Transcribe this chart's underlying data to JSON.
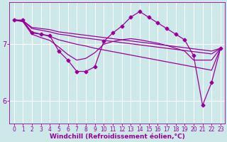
{
  "background_color": "#cce8e8",
  "line_color": "#990099",
  "grid_color": "#ffffff",
  "xlabel": "Windchill (Refroidissement éolien,°C)",
  "ylabel_ticks": [
    6,
    7
  ],
  "xlim": [
    -0.5,
    23.5
  ],
  "ylim": [
    5.6,
    7.75
  ],
  "x_ticks": [
    0,
    1,
    2,
    3,
    4,
    5,
    6,
    7,
    8,
    9,
    10,
    11,
    12,
    13,
    14,
    15,
    16,
    17,
    18,
    19,
    20,
    21,
    22,
    23
  ],
  "series": [
    {
      "x": [
        0,
        1,
        2,
        3,
        4,
        5,
        6,
        7,
        8,
        9,
        10,
        11,
        12,
        13,
        14,
        15,
        16,
        17,
        18,
        19,
        20,
        21,
        22,
        23
      ],
      "y": [
        7.43,
        7.43,
        7.2,
        7.18,
        7.15,
        6.88,
        6.72,
        6.52,
        6.52,
        6.6,
        7.05,
        7.2,
        7.32,
        7.48,
        7.58,
        7.48,
        7.38,
        7.28,
        7.18,
        7.08,
        6.8,
        5.92,
        6.32,
        6.93
      ],
      "has_markers": true
    },
    {
      "x": [
        0,
        1,
        2,
        3,
        4,
        5,
        6,
        7,
        8,
        9,
        10,
        11,
        12,
        13,
        14,
        15,
        16,
        17,
        18,
        19,
        20,
        21,
        22,
        23
      ],
      "y": [
        7.43,
        7.42,
        7.3,
        7.28,
        7.26,
        7.22,
        7.2,
        7.18,
        7.16,
        7.14,
        7.12,
        7.1,
        7.08,
        7.06,
        7.04,
        7.02,
        7.0,
        6.98,
        6.96,
        6.94,
        6.92,
        6.9,
        6.88,
        6.93
      ],
      "has_markers": false
    },
    {
      "x": [
        0,
        1,
        2,
        3,
        4,
        5,
        6,
        7,
        8,
        9,
        10,
        11,
        12,
        13,
        14,
        15,
        16,
        17,
        18,
        19,
        20,
        21,
        22,
        23
      ],
      "y": [
        7.43,
        7.42,
        7.28,
        7.25,
        7.22,
        7.18,
        7.16,
        7.13,
        7.11,
        7.09,
        7.07,
        7.05,
        7.03,
        7.01,
        6.99,
        6.97,
        6.95,
        6.93,
        6.91,
        6.89,
        6.87,
        6.85,
        6.83,
        6.93
      ],
      "has_markers": false
    },
    {
      "x": [
        0,
        1,
        2,
        3,
        4,
        5,
        6,
        7,
        8,
        9,
        10,
        11,
        12,
        13,
        14,
        15,
        16,
        17,
        18,
        19,
        20,
        21,
        22,
        23
      ],
      "y": [
        7.43,
        7.41,
        7.22,
        7.18,
        7.14,
        7.08,
        7.04,
        7.0,
        6.97,
        6.93,
        6.9,
        6.87,
        6.84,
        6.81,
        6.78,
        6.75,
        6.72,
        6.69,
        6.66,
        6.63,
        6.6,
        6.57,
        6.54,
        6.93
      ],
      "has_markers": false
    },
    {
      "x": [
        0,
        1,
        2,
        3,
        4,
        5,
        6,
        7,
        8,
        9,
        10,
        11,
        12,
        13,
        14,
        15,
        16,
        17,
        18,
        19,
        20,
        21,
        22,
        23
      ],
      "y": [
        7.43,
        7.4,
        7.18,
        7.12,
        7.07,
        6.95,
        6.82,
        6.72,
        6.75,
        6.85,
        7.0,
        7.05,
        7.08,
        7.1,
        7.08,
        7.05,
        7.02,
        6.98,
        6.93,
        6.88,
        6.72,
        6.72,
        6.72,
        6.93
      ],
      "has_markers": false
    }
  ],
  "marker": "D",
  "marker_size": 2.5,
  "linewidth": 0.9,
  "xlabel_fontsize": 6.5,
  "ylabel_fontsize": 7,
  "tick_fontsize": 5.5
}
